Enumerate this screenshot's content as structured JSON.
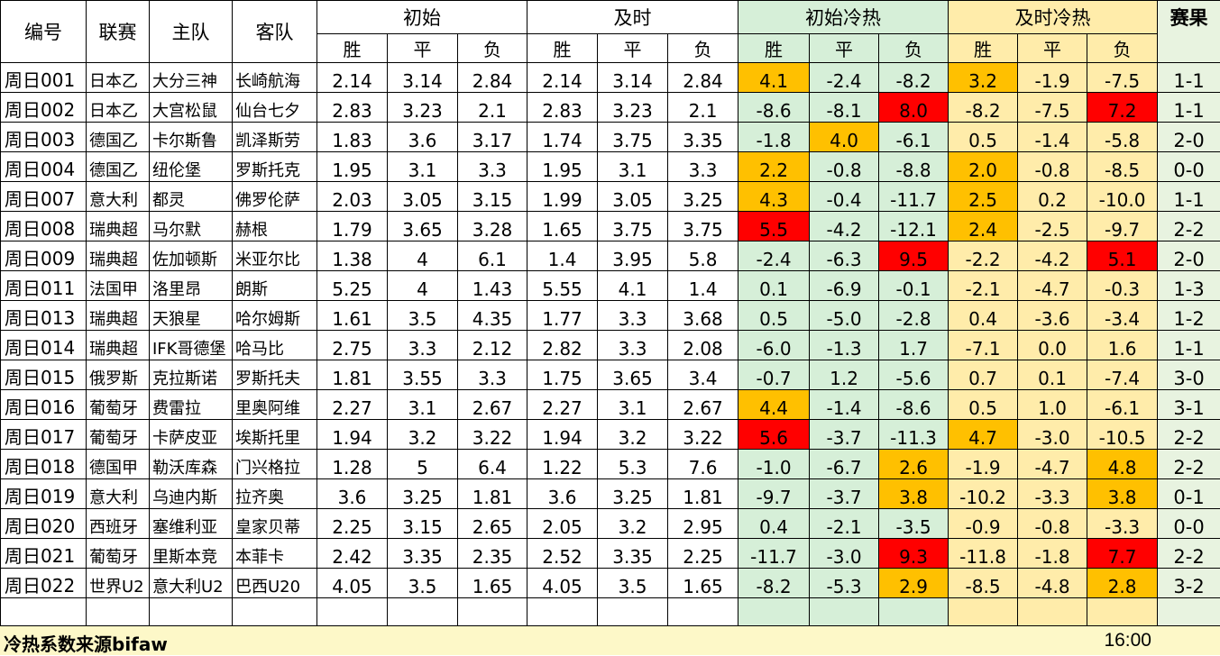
{
  "colors": {
    "initial_section_bg": "#d6efd8",
    "live_section_bg": "#ffecaa",
    "result_bg": "#e8f3e0",
    "highlight_orange": "#ffc000",
    "highlight_red": "#ff0000",
    "footer_bg": "#fdf8c8"
  },
  "headers": {
    "id": "编号",
    "league": "联赛",
    "home": "主队",
    "away": "客队",
    "initial": "初始",
    "live": "及时",
    "initial_heat": "初始冷热",
    "live_heat": "及时冷热",
    "result": "赛果",
    "win": "胜",
    "draw": "平",
    "loss": "负"
  },
  "rows": [
    {
      "id": "周日001",
      "league": "日本乙",
      "home": "大分三神",
      "away": "长崎航海",
      "init": [
        "2.14",
        "3.14",
        "2.84"
      ],
      "live": [
        "2.14",
        "3.14",
        "2.84"
      ],
      "iheat": [
        "4.1",
        "-2.4",
        "-8.2"
      ],
      "iheat_hl": [
        "orange",
        "",
        ""
      ],
      "lheat": [
        "3.2",
        "-1.9",
        "-7.5"
      ],
      "lheat_hl": [
        "orange",
        "",
        ""
      ],
      "result": "1-1"
    },
    {
      "id": "周日002",
      "league": "日本乙",
      "home": "大宫松鼠",
      "away": "仙台七夕",
      "init": [
        "2.83",
        "3.23",
        "2.1"
      ],
      "live": [
        "2.83",
        "3.23",
        "2.1"
      ],
      "iheat": [
        "-8.6",
        "-8.1",
        "8.0"
      ],
      "iheat_hl": [
        "",
        "",
        "red"
      ],
      "lheat": [
        "-8.2",
        "-7.5",
        "7.2"
      ],
      "lheat_hl": [
        "",
        "",
        "red"
      ],
      "result": "1-1"
    },
    {
      "id": "周日003",
      "league": "德国乙",
      "home": "卡尔斯鲁",
      "away": "凯泽斯劳",
      "init": [
        "1.83",
        "3.6",
        "3.17"
      ],
      "live": [
        "1.74",
        "3.75",
        "3.35"
      ],
      "iheat": [
        "-1.8",
        "4.0",
        "-6.1"
      ],
      "iheat_hl": [
        "",
        "orange",
        ""
      ],
      "lheat": [
        "0.5",
        "-1.4",
        "-5.8"
      ],
      "lheat_hl": [
        "",
        "",
        ""
      ],
      "result": "2-0"
    },
    {
      "id": "周日004",
      "league": "德国乙",
      "home": "纽伦堡",
      "away": "罗斯托克",
      "init": [
        "1.95",
        "3.1",
        "3.3"
      ],
      "live": [
        "1.95",
        "3.1",
        "3.3"
      ],
      "iheat": [
        "2.2",
        "-0.8",
        "-8.8"
      ],
      "iheat_hl": [
        "orange",
        "",
        ""
      ],
      "lheat": [
        "2.0",
        "-0.8",
        "-8.5"
      ],
      "lheat_hl": [
        "orange",
        "",
        ""
      ],
      "result": "0-0"
    },
    {
      "id": "周日007",
      "league": "意大利",
      "home": "都灵",
      "away": "佛罗伦萨",
      "init": [
        "2.03",
        "3.05",
        "3.15"
      ],
      "live": [
        "1.99",
        "3.05",
        "3.25"
      ],
      "iheat": [
        "4.3",
        "-0.4",
        "-11.7"
      ],
      "iheat_hl": [
        "orange",
        "",
        ""
      ],
      "lheat": [
        "2.5",
        "0.2",
        "-10.0"
      ],
      "lheat_hl": [
        "orange",
        "",
        ""
      ],
      "result": "1-1"
    },
    {
      "id": "周日008",
      "league": "瑞典超",
      "home": "马尔默",
      "away": "赫根",
      "init": [
        "1.79",
        "3.65",
        "3.28"
      ],
      "live": [
        "1.65",
        "3.75",
        "3.75"
      ],
      "iheat": [
        "5.5",
        "-4.2",
        "-12.1"
      ],
      "iheat_hl": [
        "red",
        "",
        ""
      ],
      "lheat": [
        "2.4",
        "-2.5",
        "-9.7"
      ],
      "lheat_hl": [
        "orange",
        "",
        ""
      ],
      "result": "2-2"
    },
    {
      "id": "周日009",
      "league": "瑞典超",
      "home": "佐加顿斯",
      "away": "米亚尔比",
      "init": [
        "1.38",
        "4",
        "6.1"
      ],
      "live": [
        "1.4",
        "3.95",
        "5.8"
      ],
      "iheat": [
        "-2.4",
        "-6.3",
        "9.5"
      ],
      "iheat_hl": [
        "",
        "",
        "red"
      ],
      "lheat": [
        "-2.2",
        "-4.2",
        "5.1"
      ],
      "lheat_hl": [
        "",
        "",
        "red"
      ],
      "result": "2-0"
    },
    {
      "id": "周日011",
      "league": "法国甲",
      "home": "洛里昂",
      "away": "朗斯",
      "init": [
        "5.25",
        "4",
        "1.43"
      ],
      "live": [
        "5.55",
        "4.1",
        "1.4"
      ],
      "iheat": [
        "0.1",
        "-6.9",
        "-0.1"
      ],
      "iheat_hl": [
        "",
        "",
        ""
      ],
      "lheat": [
        "-2.1",
        "-4.7",
        "-0.3"
      ],
      "lheat_hl": [
        "",
        "",
        ""
      ],
      "result": "1-3"
    },
    {
      "id": "周日013",
      "league": "瑞典超",
      "home": "天狼星",
      "away": "哈尔姆斯",
      "init": [
        "1.61",
        "3.5",
        "4.35"
      ],
      "live": [
        "1.77",
        "3.3",
        "3.68"
      ],
      "iheat": [
        "0.5",
        "-5.0",
        "-2.8"
      ],
      "iheat_hl": [
        "",
        "",
        ""
      ],
      "lheat": [
        "0.4",
        "-3.6",
        "-3.4"
      ],
      "lheat_hl": [
        "",
        "",
        ""
      ],
      "result": "1-2"
    },
    {
      "id": "周日014",
      "league": "瑞典超",
      "home": "IFK哥德堡",
      "away": "哈马比",
      "init": [
        "2.75",
        "3.3",
        "2.12"
      ],
      "live": [
        "2.82",
        "3.3",
        "2.08"
      ],
      "iheat": [
        "-6.0",
        "-1.3",
        "1.7"
      ],
      "iheat_hl": [
        "",
        "",
        ""
      ],
      "lheat": [
        "-7.1",
        "0.0",
        "1.6"
      ],
      "lheat_hl": [
        "",
        "",
        ""
      ],
      "result": "1-1"
    },
    {
      "id": "周日015",
      "league": "俄罗斯",
      "home": "克拉斯诺",
      "away": "罗斯托夫",
      "init": [
        "1.81",
        "3.55",
        "3.3"
      ],
      "live": [
        "1.75",
        "3.65",
        "3.4"
      ],
      "iheat": [
        "-0.7",
        "1.2",
        "-5.6"
      ],
      "iheat_hl": [
        "",
        "",
        ""
      ],
      "lheat": [
        "0.7",
        "0.1",
        "-7.4"
      ],
      "lheat_hl": [
        "",
        "",
        ""
      ],
      "result": "3-0"
    },
    {
      "id": "周日016",
      "league": "葡萄牙",
      "home": "费雷拉",
      "away": "里奥阿维",
      "init": [
        "2.27",
        "3.1",
        "2.67"
      ],
      "live": [
        "2.27",
        "3.1",
        "2.67"
      ],
      "iheat": [
        "4.4",
        "-1.4",
        "-8.6"
      ],
      "iheat_hl": [
        "orange",
        "",
        ""
      ],
      "lheat": [
        "0.5",
        "1.0",
        "-6.1"
      ],
      "lheat_hl": [
        "",
        "",
        ""
      ],
      "result": "3-1"
    },
    {
      "id": "周日017",
      "league": "葡萄牙",
      "home": "卡萨皮亚",
      "away": "埃斯托里",
      "init": [
        "1.94",
        "3.2",
        "3.22"
      ],
      "live": [
        "1.94",
        "3.2",
        "3.22"
      ],
      "iheat": [
        "5.6",
        "-3.7",
        "-11.3"
      ],
      "iheat_hl": [
        "red",
        "",
        ""
      ],
      "lheat": [
        "4.7",
        "-3.0",
        "-10.5"
      ],
      "lheat_hl": [
        "orange",
        "",
        ""
      ],
      "result": "2-2"
    },
    {
      "id": "周日018",
      "league": "德国甲",
      "home": "勒沃库森",
      "away": "门兴格拉",
      "init": [
        "1.28",
        "5",
        "6.4"
      ],
      "live": [
        "1.22",
        "5.3",
        "7.6"
      ],
      "iheat": [
        "-1.0",
        "-6.7",
        "2.6"
      ],
      "iheat_hl": [
        "",
        "",
        "orange"
      ],
      "lheat": [
        "-1.9",
        "-4.7",
        "4.8"
      ],
      "lheat_hl": [
        "",
        "",
        "orange"
      ],
      "result": "2-2"
    },
    {
      "id": "周日019",
      "league": "意大利",
      "home": "乌迪内斯",
      "away": "拉齐奥",
      "init": [
        "3.6",
        "3.25",
        "1.81"
      ],
      "live": [
        "3.6",
        "3.25",
        "1.81"
      ],
      "iheat": [
        "-9.7",
        "-3.7",
        "3.8"
      ],
      "iheat_hl": [
        "",
        "",
        "orange"
      ],
      "lheat": [
        "-10.2",
        "-3.3",
        "3.8"
      ],
      "lheat_hl": [
        "",
        "",
        "orange"
      ],
      "result": "0-1"
    },
    {
      "id": "周日020",
      "league": "西班牙",
      "home": "塞维利亚",
      "away": "皇家贝蒂",
      "init": [
        "2.25",
        "3.15",
        "2.65"
      ],
      "live": [
        "2.05",
        "3.2",
        "2.95"
      ],
      "iheat": [
        "0.4",
        "-2.1",
        "-3.5"
      ],
      "iheat_hl": [
        "",
        "",
        ""
      ],
      "lheat": [
        "-0.9",
        "-0.8",
        "-3.3"
      ],
      "lheat_hl": [
        "",
        "",
        ""
      ],
      "result": "0-0"
    },
    {
      "id": "周日021",
      "league": "葡萄牙",
      "home": "里斯本竞",
      "away": "本菲卡",
      "init": [
        "2.42",
        "3.35",
        "2.35"
      ],
      "live": [
        "2.52",
        "3.35",
        "2.25"
      ],
      "iheat": [
        "-11.7",
        "-3.0",
        "9.3"
      ],
      "iheat_hl": [
        "",
        "",
        "red"
      ],
      "lheat": [
        "-11.8",
        "-1.8",
        "7.7"
      ],
      "lheat_hl": [
        "",
        "",
        "red"
      ],
      "result": "2-2"
    },
    {
      "id": "周日022",
      "league": "世界U2",
      "home": "意大利U2",
      "away": "巴西U20",
      "init": [
        "4.05",
        "3.5",
        "1.65"
      ],
      "live": [
        "4.05",
        "3.5",
        "1.65"
      ],
      "iheat": [
        "-8.2",
        "-5.3",
        "2.9"
      ],
      "iheat_hl": [
        "",
        "",
        "orange"
      ],
      "lheat": [
        "-8.5",
        "-4.8",
        "2.8"
      ],
      "lheat_hl": [
        "",
        "",
        "orange"
      ],
      "result": "3-2"
    }
  ],
  "footer": {
    "note": "冷热系数来源bifaw",
    "time": "16:00"
  }
}
